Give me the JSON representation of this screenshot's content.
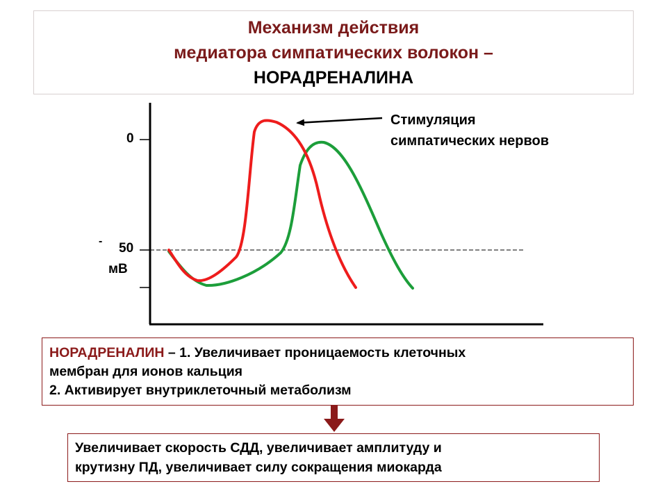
{
  "title": {
    "line1": "Механизм действия",
    "line2": "медиатора симпатических волокон –",
    "line3": "НОРАДРЕНАЛИНА"
  },
  "chart_data": {
    "type": "line",
    "y_ticks": [
      "0",
      "50"
    ],
    "y_minus": "-",
    "y_unit": "мВ",
    "annotation": {
      "line1": "Стимуляция",
      "line2": "симпатических нервов"
    },
    "series": [
      {
        "color": "#ee1c1c"
      },
      {
        "color": "#1c9e3a"
      }
    ]
  },
  "info": {
    "term": "НОРАДРЕНАЛИН",
    "line1_rest": " – 1. Увеличивает проницаемость клеточных",
    "line2": "мембран для ионов кальция",
    "line3": "2. Активирует внутриклеточный метаболизм"
  },
  "result": {
    "line1": "Увеличивает скорость СДД, увеличивает амплитуду и",
    "line2": "крутизну ПД, увеличивает силу сокращения миокарда"
  },
  "colors": {
    "accent": "#8b1a1a",
    "red_curve": "#ee1c1c",
    "green_curve": "#1c9e3a"
  }
}
